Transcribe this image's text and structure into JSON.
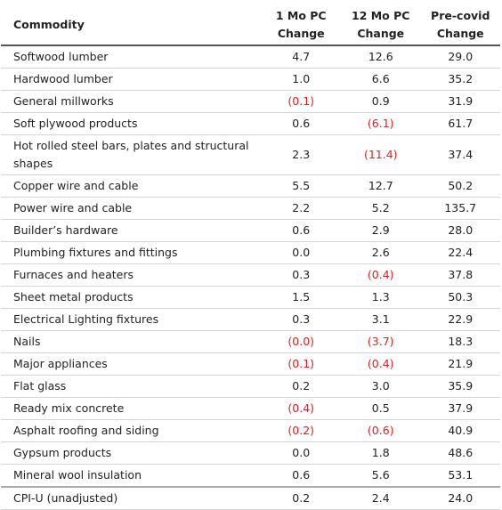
{
  "table": {
    "headers": {
      "commodity": "Commodity",
      "mo1_line1": "1 Mo PC",
      "mo1_line2": "Change",
      "mo12_line1": "12 Mo PC",
      "mo12_line2": "Change",
      "precovid_line1": "Pre-covid",
      "precovid_line2": "Change"
    },
    "rows": [
      {
        "name": "Softwood lumber",
        "mo1": "4.7",
        "mo12": "12.6",
        "precovid": "29.0"
      },
      {
        "name": "Hardwood lumber",
        "mo1": "1.0",
        "mo12": "6.6",
        "precovid": "35.2"
      },
      {
        "name": "General millworks",
        "mo1": "(0.1)",
        "mo12": "0.9",
        "precovid": "31.9"
      },
      {
        "name": "Soft plywood products",
        "mo1": "0.6",
        "mo12": "(6.1)",
        "precovid": "61.7"
      },
      {
        "name": "Hot rolled steel bars, plates and structural shapes",
        "mo1": "2.3",
        "mo12": "(11.4)",
        "precovid": "37.4"
      },
      {
        "name": "Copper wire and cable",
        "mo1": "5.5",
        "mo12": "12.7",
        "precovid": "50.2"
      },
      {
        "name": "Power wire and cable",
        "mo1": "2.2",
        "mo12": "5.2",
        "precovid": "135.7"
      },
      {
        "name": "Builder’s hardware",
        "mo1": "0.6",
        "mo12": "2.9",
        "precovid": "28.0"
      },
      {
        "name": "Plumbing fixtures and fittings",
        "mo1": "0.0",
        "mo12": "2.6",
        "precovid": "22.4"
      },
      {
        "name": "Furnaces and heaters",
        "mo1": "0.3",
        "mo12": "(0.4)",
        "precovid": "37.8"
      },
      {
        "name": "Sheet metal products",
        "mo1": "1.5",
        "mo12": "1.3",
        "precovid": "50.3"
      },
      {
        "name": "Electrical Lighting fixtures",
        "mo1": "0.3",
        "mo12": "3.1",
        "precovid": "22.9"
      },
      {
        "name": "Nails",
        "mo1": "(0.0)",
        "mo12": "(3.7)",
        "precovid": "18.3"
      },
      {
        "name": "Major appliances",
        "mo1": "(0.1)",
        "mo12": "(0.4)",
        "precovid": "21.9"
      },
      {
        "name": "Flat glass",
        "mo1": "0.2",
        "mo12": "3.0",
        "precovid": "35.9"
      },
      {
        "name": "Ready mix concrete",
        "mo1": "(0.4)",
        "mo12": "0.5",
        "precovid": "37.9"
      },
      {
        "name": "Asphalt roofing and siding",
        "mo1": "(0.2)",
        "mo12": "(0.6)",
        "precovid": "40.9"
      },
      {
        "name": "Gypsum products",
        "mo1": "0.0",
        "mo12": "1.8",
        "precovid": "48.6"
      },
      {
        "name": "Mineral wool insulation",
        "mo1": "0.6",
        "mo12": "5.6",
        "precovid": "53.1"
      }
    ],
    "total": {
      "name": "CPI-U (unadjusted)",
      "mo1": "0.2",
      "mo12": "2.4",
      "precovid": "24.0"
    },
    "colors": {
      "negative": "#e02020",
      "text": "#222222"
    }
  }
}
